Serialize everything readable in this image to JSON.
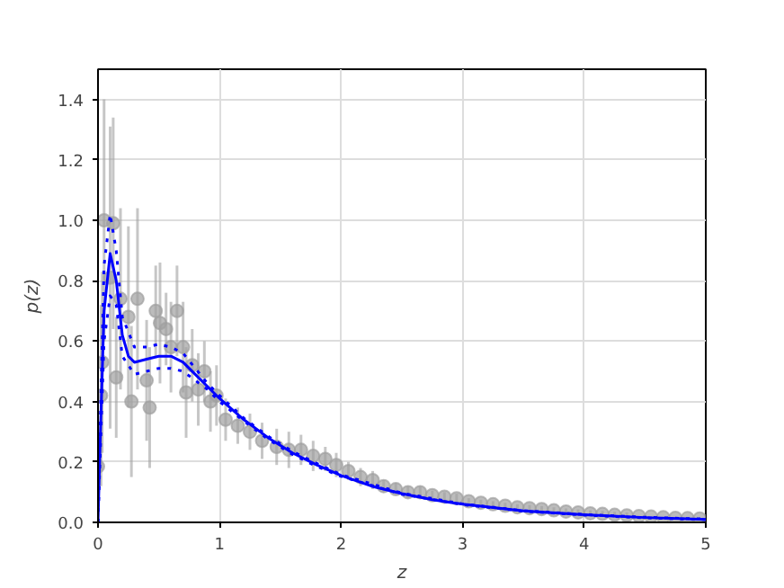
{
  "chart_data": {
    "type": "scatter",
    "xlabel": "z",
    "ylabel": "p(z)",
    "xlim": [
      0,
      5
    ],
    "ylim": [
      0,
      1.5
    ],
    "xticks": [
      0,
      1,
      2,
      3,
      4,
      5
    ],
    "yticks": [
      {
        "value": 0,
        "label": "0.0"
      },
      0.2,
      0.4,
      0.6,
      0.8,
      {
        "value": 1,
        "label": "1.0"
      },
      1.2,
      1.4
    ],
    "grid": true,
    "series": [
      {
        "color": "#a0a0a0",
        "marker": "circle",
        "x": [
          0,
          0.025,
          0.035,
          0.05,
          0.1,
          0.125,
          0.15,
          0.185,
          0.25,
          0.275,
          0.325,
          0.4,
          0.425,
          0.475,
          0.51,
          0.56,
          0.6,
          0.65,
          0.7,
          0.725,
          0.775,
          0.825,
          0.875,
          0.925,
          0.975,
          1.05,
          1.15,
          1.25,
          1.35,
          1.47,
          1.57,
          1.67,
          1.77,
          1.87,
          1.96,
          2.06,
          2.16,
          2.26,
          2.35,
          2.45,
          2.55,
          2.65,
          2.75,
          2.85,
          2.95,
          3.05,
          3.15,
          3.25,
          3.35,
          3.45,
          3.55,
          3.65,
          3.75,
          3.85,
          3.95,
          4.05,
          4.15,
          4.25,
          4.35,
          4.45,
          4.55,
          4.65,
          4.75,
          4.85,
          4.95
        ],
        "values": [
          0.185,
          0.42,
          0.53,
          1.0,
          0.81,
          0.99,
          0.48,
          0.74,
          0.68,
          0.4,
          0.74,
          0.47,
          0.38,
          0.7,
          0.66,
          0.64,
          0.58,
          0.7,
          0.58,
          0.43,
          0.52,
          0.44,
          0.5,
          0.4,
          0.42,
          0.34,
          0.32,
          0.3,
          0.27,
          0.25,
          0.24,
          0.24,
          0.22,
          0.21,
          0.19,
          0.17,
          0.15,
          0.14,
          0.12,
          0.11,
          0.1,
          0.1,
          0.09,
          0.085,
          0.08,
          0.07,
          0.065,
          0.06,
          0.055,
          0.05,
          0.047,
          0.044,
          0.04,
          0.036,
          0.033,
          0.03,
          0.028,
          0.025,
          0.023,
          0.021,
          0.019,
          0.017,
          0.015,
          0.014,
          0.013
        ],
        "errors": [
          0.15,
          0.3,
          0.3,
          0.4,
          0.5,
          0.35,
          0.2,
          0.3,
          0.3,
          0.25,
          0.3,
          0.2,
          0.2,
          0.15,
          0.2,
          0.12,
          0.15,
          0.15,
          0.15,
          0.15,
          0.12,
          0.12,
          0.1,
          0.1,
          0.1,
          0.07,
          0.06,
          0.06,
          0.06,
          0.06,
          0.06,
          0.05,
          0.05,
          0.04,
          0.04,
          0.03,
          0.03,
          0.03,
          0.02,
          0.02,
          0.02,
          0.02,
          0.015,
          0.015,
          0.015,
          0.01,
          0.01,
          0.01,
          0.01,
          0.01,
          0.01,
          0.01,
          0.01,
          0.01,
          0.01,
          0.01,
          0.01,
          0.01,
          0.01,
          null,
          null,
          null,
          null,
          null,
          null
        ]
      },
      {
        "type": "line",
        "color": "#0000ff",
        "line_style": "solid",
        "x": [
          0,
          0.02,
          0.05,
          0.1,
          0.15,
          0.2,
          0.25,
          0.3,
          0.4,
          0.5,
          0.6,
          0.7,
          0.8,
          0.9,
          1.0,
          1.2,
          1.4,
          1.6,
          1.8,
          2.0,
          2.25,
          2.5,
          2.75,
          3.0,
          3.5,
          4.0,
          4.5,
          5.0
        ],
        "values": [
          0,
          0.3,
          0.7,
          0.89,
          0.8,
          0.62,
          0.55,
          0.53,
          0.54,
          0.55,
          0.55,
          0.53,
          0.49,
          0.45,
          0.41,
          0.34,
          0.28,
          0.23,
          0.19,
          0.155,
          0.12,
          0.095,
          0.075,
          0.06,
          0.038,
          0.025,
          0.016,
          0.01
        ]
      },
      {
        "type": "line",
        "color": "#0000ff",
        "line_style": "dotted",
        "x": [
          0,
          0.02,
          0.05,
          0.1,
          0.15,
          0.2,
          0.3,
          0.4,
          0.5,
          0.6,
          0.7,
          0.8,
          0.9,
          1.0,
          1.2,
          1.4,
          1.6,
          1.8,
          2.0,
          2.5,
          3.0,
          3.5,
          4.0,
          4.5,
          5.0
        ],
        "values": [
          0,
          0.35,
          0.85,
          1.02,
          0.9,
          0.68,
          0.58,
          0.58,
          0.59,
          0.58,
          0.56,
          0.51,
          0.46,
          0.42,
          0.345,
          0.285,
          0.235,
          0.195,
          0.158,
          0.097,
          0.061,
          0.039,
          0.026,
          0.017,
          0.011
        ]
      },
      {
        "type": "line",
        "color": "#0000ff",
        "line_style": "dotted",
        "x": [
          0,
          0.02,
          0.05,
          0.1,
          0.15,
          0.2,
          0.3,
          0.4,
          0.5,
          0.6,
          0.7,
          0.8,
          0.9,
          1.0,
          1.2,
          1.4,
          1.6,
          1.8,
          2.0,
          2.5,
          3.0,
          3.5,
          4.0,
          4.5,
          5.0
        ],
        "values": [
          0,
          0.25,
          0.6,
          0.75,
          0.72,
          0.55,
          0.49,
          0.5,
          0.51,
          0.51,
          0.5,
          0.47,
          0.44,
          0.4,
          0.335,
          0.275,
          0.225,
          0.185,
          0.152,
          0.093,
          0.059,
          0.037,
          0.024,
          0.015,
          0.009
        ]
      }
    ]
  }
}
